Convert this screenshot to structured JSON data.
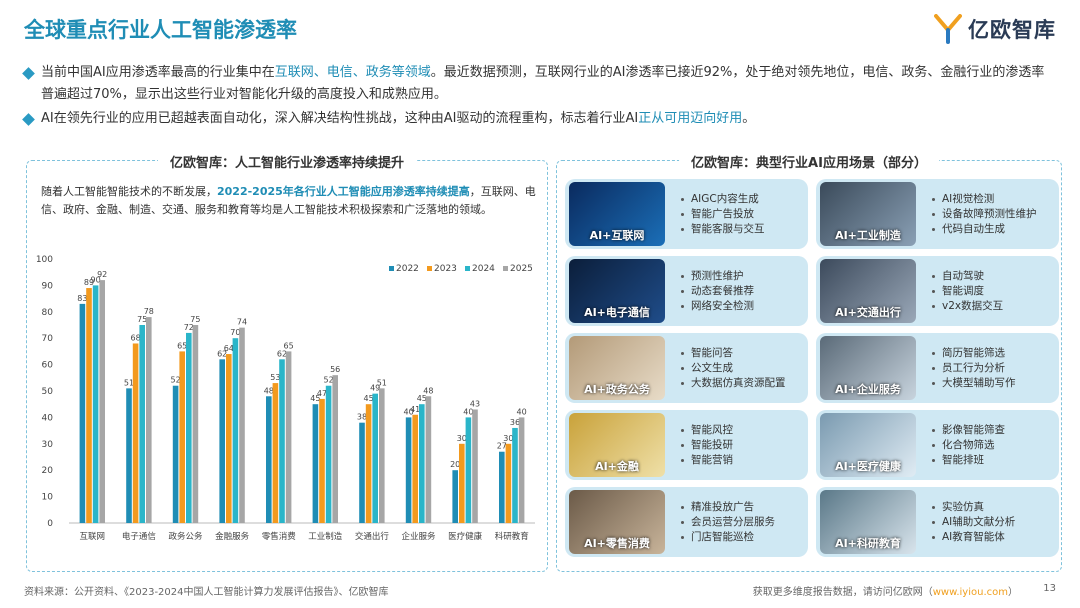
{
  "header": {
    "title": "全球重点行业人工智能渗透率",
    "logo_text": "亿欧智库"
  },
  "bullets": [
    {
      "parts": [
        {
          "text": "当前中国AI应用渗透率最高的行业集中在",
          "hl": false
        },
        {
          "text": "互联网、电信、政务等领域",
          "hl": true
        },
        {
          "text": "。最近数据预测，互联网行业的AI渗透率已接近92%，处于绝对领先地位，电信、政务、金融行业的渗透率普遍超过70%，显示出这些行业对智能化升级的高度投入和成熟应用。",
          "hl": false
        }
      ]
    },
    {
      "parts": [
        {
          "text": "AI在领先行业的应用已超越表面自动化，深入解决结构性挑战，这种由AI驱动的流程重构，标志着行业AI",
          "hl": false
        },
        {
          "text": "正从可用迈向好用",
          "hl": true
        },
        {
          "text": "。",
          "hl": false
        }
      ]
    }
  ],
  "left_panel": {
    "title": "亿欧智库：人工智能行业渗透率持续提升",
    "desc_before": "随着人工智能智能技术的不断发展，",
    "desc_highlight": "2022-2025年各行业人工智能应用渗透率持续提高",
    "desc_after": "，互联网、电信、政府、金融、制造、交通、服务和教育等均是人工智能技术积极探索和广泛落地的领域。"
  },
  "chart_data": {
    "type": "bar",
    "categories": [
      "互联网",
      "电子通信",
      "政务公务",
      "金融服务",
      "零售消费",
      "工业制造",
      "交通出行",
      "企业服务",
      "医疗健康",
      "科研教育"
    ],
    "series": [
      {
        "name": "2022",
        "color": "#1f8db5",
        "values": [
          83,
          51,
          52,
          62,
          48,
          45,
          38,
          40,
          20,
          27
        ]
      },
      {
        "name": "2023",
        "color": "#f39a1e",
        "values": [
          89,
          68,
          65,
          64,
          53,
          47,
          45,
          41,
          30,
          30
        ]
      },
      {
        "name": "2024",
        "color": "#2ab5c9",
        "values": [
          90,
          75,
          72,
          70,
          62,
          52,
          49,
          45,
          40,
          36
        ]
      },
      {
        "name": "2025",
        "color": "#a6a6a6",
        "values": [
          92,
          78,
          75,
          74,
          65,
          56,
          51,
          48,
          43,
          40
        ]
      }
    ],
    "yticks": [
      0,
      10,
      20,
      30,
      40,
      50,
      60,
      70,
      80,
      90,
      100
    ],
    "ylim": [
      0,
      100
    ],
    "legend_position": "top-right",
    "grid": false
  },
  "right_panel": {
    "title": "亿欧智库：典型行业AI应用场景（部分）",
    "cards": [
      {
        "label": "AI+互联网",
        "items": [
          "AIGC内容生成",
          "智能广告投放",
          "智能客服与交互"
        ]
      },
      {
        "label": "AI+工业制造",
        "items": [
          "AI视觉检测",
          "设备故障预测性维护",
          "代码自动生成"
        ]
      },
      {
        "label": "AI+电子通信",
        "items": [
          "预测性维护",
          "动态套餐推荐",
          "网络安全检测"
        ]
      },
      {
        "label": "AI+交通出行",
        "items": [
          "自动驾驶",
          "智能调度",
          "v2x数据交互"
        ]
      },
      {
        "label": "AI+政务公务",
        "items": [
          "智能问答",
          "公文生成",
          "大数据仿真资源配置"
        ]
      },
      {
        "label": "AI+企业服务",
        "items": [
          "简历智能筛选",
          "员工行为分析",
          "大模型辅助写作"
        ]
      },
      {
        "label": "AI+金融",
        "items": [
          "智能风控",
          "智能投研",
          "智能营销"
        ]
      },
      {
        "label": "AI+医疗健康",
        "items": [
          "影像智能筛查",
          "化合物筛选",
          "智能排班"
        ]
      },
      {
        "label": "AI+零售消费",
        "items": [
          "精准投放广告",
          "会员运营分层服务",
          "门店智能巡检"
        ]
      },
      {
        "label": "AI+科研教育",
        "items": [
          "实验仿真",
          "AI辅助文献分析",
          "AI教育智能体"
        ]
      }
    ]
  },
  "footer": {
    "source": "资料来源：公开资料、《2023-2024中国人工智能计算力发展评估报告》、亿欧智库",
    "contact_prefix": "获取更多维度报告数据，请访问亿欧网（",
    "contact_link": "www.iyiou.com",
    "contact_suffix": "）",
    "page": "13"
  },
  "colors": {
    "accent": "#1f8db5",
    "card_bg": "#cfe8f3",
    "panel_border": "#7fc2dc"
  }
}
